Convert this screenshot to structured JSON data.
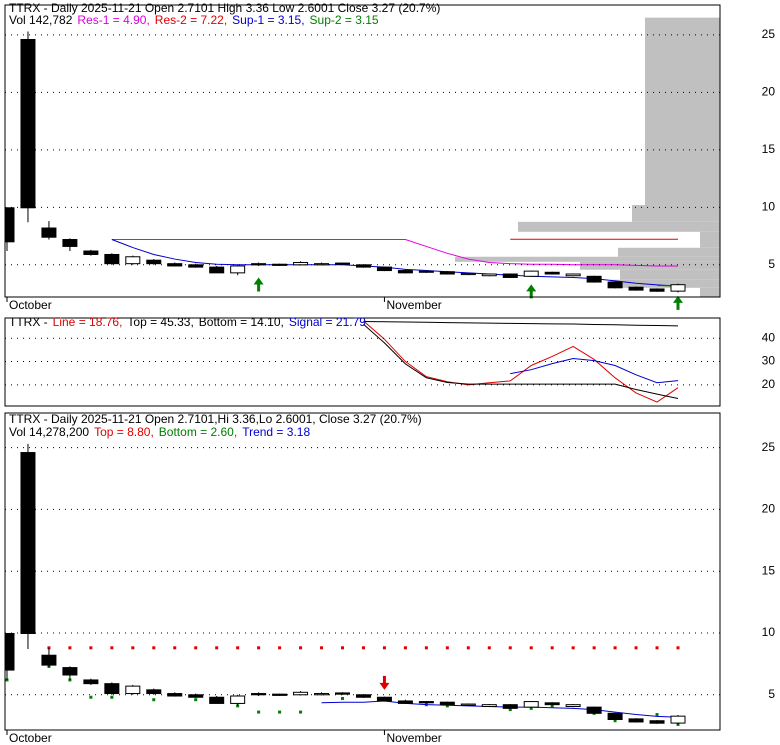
{
  "chart_data": [
    {
      "type": "candlestick",
      "title": "TTRX - Daily 2025-11-21 Open 2.7101  High 3.36  Low 2.6001  Close 3.27 (20.7%)",
      "subtitle": "Vol 142,782",
      "categories": [
        "October",
        null,
        null,
        null,
        null,
        null,
        null,
        null,
        null,
        null,
        null,
        null,
        null,
        null,
        null,
        null,
        null,
        null,
        "November",
        null,
        null,
        null,
        null,
        null,
        null,
        null,
        null,
        null,
        null,
        null,
        null,
        null,
        null
      ],
      "open": [
        9.96,
        24.6,
        8.2,
        7.2,
        6.2,
        5.9,
        5.1,
        5.4,
        5.1,
        5.0,
        4.8,
        4.3,
        5.1,
        5.05,
        5.0,
        5.0,
        5.15,
        5.0,
        4.8,
        4.5,
        4.45,
        4.4,
        4.15,
        4.05,
        4.2,
        4.0,
        4.35,
        4.05,
        4.0,
        3.5,
        3.05,
        2.9,
        2.7101
      ],
      "high": [
        10.0,
        25.3,
        8.8,
        7.3,
        6.3,
        6.0,
        5.8,
        5.5,
        5.2,
        5.1,
        4.9,
        5.0,
        5.2,
        5.1,
        5.3,
        5.2,
        5.2,
        5.05,
        4.85,
        4.6,
        4.5,
        4.45,
        4.3,
        4.25,
        4.25,
        4.5,
        4.4,
        4.25,
        4.05,
        3.55,
        3.1,
        2.95,
        3.36
      ],
      "low": [
        6.2,
        8.7,
        7.2,
        6.2,
        5.8,
        5.0,
        5.0,
        5.0,
        4.85,
        4.75,
        4.3,
        4.1,
        4.9,
        4.9,
        4.95,
        4.95,
        5.0,
        4.75,
        4.45,
        4.25,
        4.3,
        4.15,
        4.1,
        4.0,
        3.85,
        3.95,
        4.15,
        4.0,
        3.45,
        2.95,
        2.75,
        2.65,
        2.6001
      ],
      "close": [
        7.0,
        9.96,
        7.4,
        6.6,
        5.9,
        5.1,
        5.7,
        5.1,
        4.9,
        4.8,
        4.3,
        4.9,
        5.0,
        4.95,
        5.2,
        5.1,
        5.05,
        4.8,
        4.5,
        4.3,
        4.35,
        4.2,
        4.25,
        4.2,
        3.9,
        4.45,
        4.2,
        4.2,
        3.5,
        3.0,
        2.8,
        2.7,
        3.27
      ],
      "series": [
        {
          "name": "Res-1 = 4.90,",
          "color": "#e000e0",
          "style": "line",
          "values": [
            null,
            null,
            null,
            null,
            null,
            7.2,
            7.2,
            7.2,
            7.2,
            7.2,
            7.2,
            7.2,
            7.2,
            7.2,
            7.2,
            7.2,
            7.2,
            7.2,
            7.2,
            7.2,
            6.6,
            6.0,
            5.5,
            5.2,
            5.1,
            5.05,
            5.05,
            5.0,
            5.0,
            5.0,
            4.95,
            4.9,
            4.9
          ]
        },
        {
          "name": "Res-2 = 7.22,",
          "color": "#e00000",
          "style": "line",
          "values": [
            null,
            null,
            null,
            null,
            null,
            null,
            null,
            null,
            null,
            null,
            null,
            null,
            null,
            null,
            null,
            null,
            null,
            null,
            null,
            null,
            null,
            null,
            null,
            null,
            7.22,
            7.22,
            7.22,
            7.22,
            7.22,
            7.22,
            7.22,
            7.22,
            7.22
          ]
        },
        {
          "name": "Sup-1 = 3.15,",
          "color": "#0000d0",
          "style": "line",
          "values": [
            null,
            null,
            null,
            null,
            null,
            7.2,
            6.5,
            5.9,
            5.5,
            5.2,
            5.05,
            5.0,
            5.0,
            5.0,
            5.0,
            5.0,
            5.0,
            4.9,
            4.8,
            4.6,
            4.5,
            4.4,
            4.3,
            4.2,
            4.1,
            4.0,
            3.95,
            3.9,
            3.8,
            3.6,
            3.4,
            3.25,
            3.15
          ]
        },
        {
          "name": "Sup-2 = 3.15",
          "color": "#008000",
          "style": "line",
          "values": [
            null,
            null,
            null,
            null,
            null,
            null,
            null,
            null,
            null,
            null,
            null,
            null,
            null,
            null,
            null,
            null,
            null,
            null,
            null,
            null,
            null,
            null,
            null,
            null,
            null,
            null,
            null,
            null,
            null,
            null,
            null,
            3.2,
            3.15
          ]
        }
      ],
      "up_arrows": {
        "color": "#008000",
        "values": [
          null,
          null,
          null,
          null,
          null,
          null,
          null,
          null,
          null,
          null,
          null,
          null,
          3.9,
          null,
          null,
          null,
          null,
          null,
          null,
          null,
          null,
          null,
          null,
          null,
          null,
          3.3,
          null,
          null,
          null,
          null,
          null,
          null,
          2.3
        ]
      },
      "volume_profile": {
        "color": "#c0c0c0",
        "bins": [
          2.2,
          3.0,
          3.7,
          4.57,
          5.26,
          5.7,
          6.48,
          7.87,
          8.74,
          10.2,
          26.5
        ],
        "values": [
          20,
          110,
          100,
          140,
          265,
          102,
          20,
          202,
          88,
          75
        ]
      },
      "ylim": [
        2.2,
        27.6
      ],
      "yticks": [
        5,
        10,
        15,
        20,
        25
      ],
      "grid": true
    },
    {
      "type": "line",
      "title": "TTRX -",
      "series": [
        {
          "name": "Line = 18.76,",
          "color": "#e00000",
          "style": "line",
          "values": [
            null,
            null,
            null,
            null,
            null,
            null,
            null,
            null,
            null,
            null,
            null,
            null,
            null,
            null,
            null,
            null,
            null,
            47.4,
            39.6,
            30.0,
            23.5,
            21.3,
            20.0,
            20.9,
            21.7,
            28.3,
            32.2,
            36.5,
            30.9,
            23.0,
            16.5,
            12.6,
            18.76
          ]
        },
        {
          "name": "Top = 45.33,",
          "color": "#000000",
          "style": "line",
          "values": [
            null,
            null,
            null,
            null,
            null,
            null,
            null,
            null,
            null,
            null,
            null,
            null,
            null,
            null,
            null,
            null,
            null,
            47.2,
            47.1,
            47.0,
            46.9,
            46.7,
            46.6,
            46.5,
            46.4,
            46.3,
            46.2,
            46.1,
            45.9,
            45.8,
            45.6,
            45.5,
            45.33
          ]
        },
        {
          "name": "Bottom = 14.10,",
          "color": "#000000",
          "style": "line",
          "values": [
            null,
            null,
            null,
            null,
            null,
            null,
            null,
            null,
            null,
            null,
            null,
            null,
            null,
            null,
            null,
            null,
            null,
            46.0,
            38.0,
            29.0,
            23.0,
            21.0,
            20.3,
            20.3,
            20.3,
            20.3,
            20.3,
            20.3,
            20.3,
            20.3,
            18.0,
            16.0,
            14.1
          ]
        },
        {
          "name": "Signal = 21.79",
          "color": "#0000d0",
          "style": "line",
          "values": [
            null,
            null,
            null,
            null,
            null,
            null,
            null,
            null,
            null,
            null,
            null,
            null,
            null,
            null,
            null,
            null,
            null,
            null,
            null,
            null,
            null,
            null,
            null,
            null,
            24.8,
            26.5,
            29.1,
            31.3,
            30.4,
            28.3,
            24.3,
            20.9,
            21.79
          ]
        }
      ],
      "ylim": [
        10.9,
        48.7
      ],
      "yticks": [
        20,
        30,
        40
      ],
      "grid": true
    },
    {
      "type": "candlestick",
      "title": "TTRX - Daily 2025-11-21 Open 2.7101,Hi 3.36,Lo 2.6001, Close 3.27 (20.7%)",
      "subtitle": "Vol 14,278,200",
      "categories": [
        "October",
        null,
        null,
        null,
        null,
        null,
        null,
        null,
        null,
        null,
        null,
        null,
        null,
        null,
        null,
        null,
        null,
        null,
        "November",
        null,
        null,
        null,
        null,
        null,
        null,
        null,
        null,
        null,
        null,
        null,
        null,
        null,
        null
      ],
      "open": [
        9.96,
        24.6,
        8.2,
        7.2,
        6.2,
        5.9,
        5.1,
        5.4,
        5.1,
        5.0,
        4.8,
        4.3,
        5.1,
        5.05,
        5.0,
        5.0,
        5.15,
        5.0,
        4.8,
        4.5,
        4.45,
        4.4,
        4.15,
        4.05,
        4.2,
        4.0,
        4.35,
        4.05,
        4.0,
        3.5,
        3.05,
        2.9,
        2.7101
      ],
      "high": [
        10.0,
        25.3,
        8.8,
        7.3,
        6.3,
        6.0,
        5.8,
        5.5,
        5.2,
        5.1,
        4.9,
        5.0,
        5.2,
        5.1,
        5.3,
        5.2,
        5.2,
        5.05,
        4.85,
        4.6,
        4.5,
        4.45,
        4.3,
        4.25,
        4.25,
        4.5,
        4.4,
        4.25,
        4.05,
        3.55,
        3.1,
        2.95,
        3.36
      ],
      "low": [
        6.2,
        8.7,
        7.2,
        6.2,
        5.8,
        5.0,
        5.0,
        5.0,
        4.85,
        4.75,
        4.3,
        4.1,
        4.9,
        4.9,
        4.95,
        4.95,
        5.0,
        4.75,
        4.45,
        4.25,
        4.3,
        4.15,
        4.1,
        4.0,
        3.85,
        3.95,
        4.15,
        4.0,
        3.45,
        2.95,
        2.75,
        2.65,
        2.6001
      ],
      "close": [
        7.0,
        9.96,
        7.4,
        6.6,
        5.9,
        5.1,
        5.7,
        5.1,
        4.9,
        4.8,
        4.3,
        4.9,
        5.0,
        4.95,
        5.2,
        5.1,
        5.05,
        4.8,
        4.5,
        4.3,
        4.35,
        4.2,
        4.25,
        4.2,
        3.9,
        4.45,
        4.2,
        4.2,
        3.5,
        3.0,
        2.8,
        2.7,
        3.27
      ],
      "series": [
        {
          "name": "Top = 8.80,",
          "color": "#e00000",
          "style": "dots",
          "values": [
            null,
            null,
            8.8,
            8.8,
            8.8,
            8.8,
            8.8,
            8.8,
            8.8,
            8.8,
            8.8,
            8.8,
            8.8,
            8.8,
            8.8,
            8.8,
            8.8,
            8.8,
            8.8,
            8.8,
            8.8,
            8.8,
            8.8,
            8.8,
            8.8,
            8.8,
            8.8,
            8.8,
            8.8,
            8.8,
            8.8,
            8.8,
            8.8
          ]
        },
        {
          "name": "Bottom = 2.60,",
          "color": "#008000",
          "style": "dots",
          "values": [
            6.2,
            null,
            7.3,
            6.2,
            4.8,
            4.8,
            null,
            4.6,
            null,
            4.6,
            null,
            4.1,
            3.6,
            3.6,
            3.6,
            null,
            4.7,
            null,
            null,
            null,
            4.2,
            4.1,
            null,
            null,
            3.8,
            3.9,
            4.1,
            null,
            3.5,
            2.9,
            null,
            3.4,
            2.6
          ]
        },
        {
          "name": "Trend = 3.18",
          "color": "#0000d0",
          "style": "line",
          "values": [
            null,
            null,
            null,
            null,
            null,
            null,
            null,
            null,
            null,
            null,
            null,
            null,
            null,
            null,
            null,
            4.35,
            4.4,
            4.4,
            4.5,
            4.3,
            4.2,
            4.15,
            4.1,
            4.05,
            4.0,
            4.0,
            3.95,
            3.9,
            3.8,
            3.6,
            3.4,
            3.25,
            3.18
          ]
        }
      ],
      "down_arrows": {
        "color": "#e00000",
        "values": [
          null,
          null,
          null,
          null,
          null,
          null,
          null,
          null,
          null,
          null,
          null,
          null,
          null,
          null,
          null,
          null,
          null,
          null,
          5.4,
          null,
          null,
          null,
          null,
          null,
          null,
          null,
          null,
          null,
          null,
          null,
          null,
          null,
          null
        ]
      },
      "ylim": [
        2.15,
        27.8
      ],
      "yticks": [
        5,
        10,
        15,
        20,
        25
      ],
      "grid": true
    }
  ]
}
